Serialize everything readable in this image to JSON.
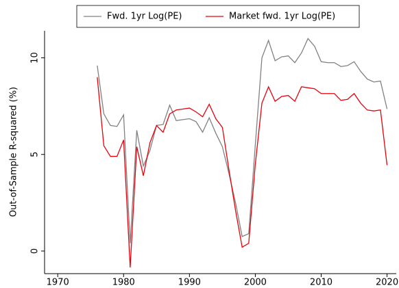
{
  "chart_data": {
    "type": "line",
    "y_label": "Out-of-Sample R-squared (%)",
    "x": [
      1976,
      1977,
      1978,
      1979,
      1980,
      1981,
      1982,
      1983,
      1984,
      1985,
      1986,
      1987,
      1988,
      1989,
      1990,
      1991,
      1992,
      1993,
      1994,
      1995,
      1996,
      1997,
      1998,
      1999,
      2000,
      2001,
      2002,
      2003,
      2004,
      2005,
      2006,
      2007,
      2008,
      2009,
      2010,
      2011,
      2012,
      2013,
      2014,
      2015,
      2016,
      2017,
      2018,
      2019,
      2020
    ],
    "series": [
      {
        "name": "Fwd. 1yr Log(PE)",
        "color": "#808080",
        "values": [
          9.6,
          7.1,
          6.5,
          6.45,
          7.05,
          0.4,
          6.25,
          4.4,
          5.2,
          6.5,
          6.55,
          7.55,
          6.75,
          6.8,
          6.85,
          6.7,
          6.15,
          6.9,
          6.1,
          5.4,
          4.0,
          2.5,
          0.75,
          0.9,
          5.5,
          10.0,
          10.9,
          9.85,
          10.05,
          10.1,
          9.75,
          10.25,
          11.0,
          10.6,
          9.8,
          9.75,
          9.75,
          9.55,
          9.6,
          9.8,
          9.3,
          8.9,
          8.75,
          8.8,
          7.35
        ]
      },
      {
        "name": "Market fwd. 1yr Log(PE)",
        "color": "#e8000b",
        "values": [
          9.0,
          5.45,
          4.9,
          4.9,
          5.75,
          -0.85,
          5.4,
          3.9,
          5.6,
          6.5,
          6.15,
          7.1,
          7.3,
          7.35,
          7.4,
          7.2,
          6.95,
          7.6,
          6.85,
          6.4,
          4.2,
          2.1,
          0.2,
          0.4,
          4.5,
          7.65,
          8.5,
          7.75,
          8.0,
          8.05,
          7.75,
          8.5,
          8.45,
          8.4,
          8.15,
          8.15,
          8.15,
          7.8,
          7.85,
          8.15,
          7.65,
          7.3,
          7.25,
          7.3,
          4.45
        ]
      }
    ],
    "xlim": [
      1968,
      2021.4
    ],
    "ylim": [
      -1.17,
      11.4
    ],
    "xticks": [
      1970,
      1980,
      1990,
      2000,
      2010,
      2020
    ],
    "yticks": [
      0,
      5,
      10
    ],
    "legend": "top"
  }
}
